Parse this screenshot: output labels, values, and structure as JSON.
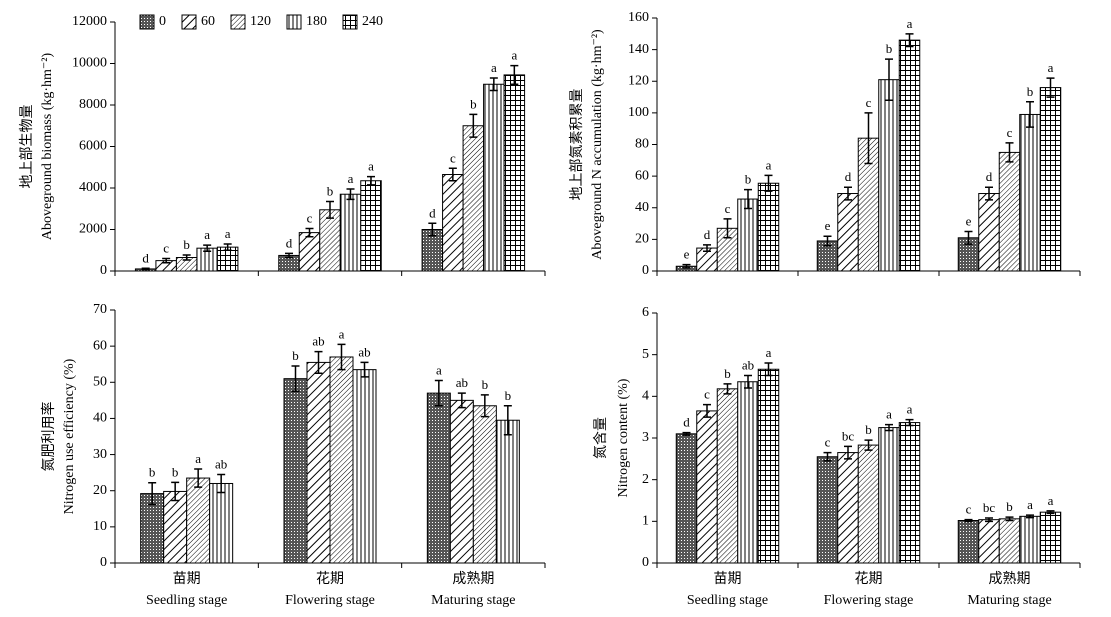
{
  "chart_data": [
    {
      "type": "bar",
      "ylabel": [
        "地上部生物量",
        "Aboveground biomass (kg·hm⁻²)"
      ],
      "ylim": [
        0,
        12000
      ],
      "yticks": [
        0,
        2000,
        4000,
        6000,
        8000,
        10000,
        12000
      ],
      "legend": "top",
      "series": [
        {
          "name": "0",
          "pattern": "dots",
          "color": "#000",
          "values": [
            100,
            750,
            2000
          ],
          "errors": [
            30,
            100,
            300
          ],
          "letters": [
            "d",
            "d",
            "d"
          ]
        },
        {
          "name": "60",
          "pattern": "diag",
          "color": "#000",
          "values": [
            500,
            1850,
            4650
          ],
          "errors": [
            100,
            200,
            300
          ],
          "letters": [
            "c",
            "c",
            "c"
          ]
        },
        {
          "name": "120",
          "pattern": "diag-dense",
          "color": "#000",
          "values": [
            650,
            2950,
            7000
          ],
          "errors": [
            120,
            400,
            550
          ],
          "letters": [
            "b",
            "b",
            "b"
          ]
        },
        {
          "name": "180",
          "pattern": "vlines",
          "color": "#000",
          "values": [
            1100,
            3700,
            9000
          ],
          "errors": [
            150,
            250,
            300
          ],
          "letters": [
            "a",
            "a",
            "a"
          ]
        },
        {
          "name": "240",
          "pattern": "grid",
          "color": "#000",
          "values": [
            1150,
            4350,
            9450
          ],
          "errors": [
            150,
            200,
            450
          ],
          "letters": [
            "a",
            "a",
            "a"
          ]
        }
      ]
    },
    {
      "type": "bar",
      "ylabel": [
        "地上部氮素积累量",
        "Aboveground N accumulation (kg·hm⁻²)"
      ],
      "ylim": [
        0,
        160
      ],
      "yticks": [
        0,
        20,
        40,
        60,
        80,
        100,
        120,
        140,
        160
      ],
      "series": [
        {
          "pattern": "dots",
          "color": "#000",
          "values": [
            3,
            19,
            21
          ],
          "errors": [
            1,
            3,
            4
          ],
          "letters": [
            "e",
            "e",
            "e"
          ]
        },
        {
          "pattern": "diag",
          "color": "#000",
          "values": [
            14.5,
            49,
            49
          ],
          "errors": [
            2,
            4,
            4
          ],
          "letters": [
            "d",
            "d",
            "d"
          ]
        },
        {
          "pattern": "diag-dense",
          "color": "#000",
          "values": [
            27,
            84,
            75
          ],
          "errors": [
            6,
            16,
            6
          ],
          "letters": [
            "c",
            "c",
            "c"
          ]
        },
        {
          "pattern": "vlines",
          "color": "#000",
          "values": [
            45.5,
            121,
            99
          ],
          "errors": [
            6,
            13,
            8
          ],
          "letters": [
            "b",
            "b",
            "b"
          ]
        },
        {
          "pattern": "grid",
          "color": "#000",
          "values": [
            55.5,
            146,
            116
          ],
          "errors": [
            5,
            4,
            6
          ],
          "letters": [
            "a",
            "a",
            "a"
          ]
        }
      ]
    },
    {
      "type": "bar",
      "ylabel": [
        "氮肥利用率",
        "Nitrogen use efficiency (%)"
      ],
      "ylim": [
        0,
        70
      ],
      "yticks": [
        0,
        10,
        20,
        30,
        40,
        50,
        60,
        70
      ],
      "categories": [
        "苗期",
        "花期",
        "成熟期"
      ],
      "categories_en": [
        "Seedling stage",
        "Flowering stage",
        "Maturing stage"
      ],
      "series": [
        {
          "pattern": "dots",
          "color": "#000",
          "values": [
            19.2,
            51,
            47
          ],
          "errors": [
            3,
            3.5,
            3.5
          ],
          "letters": [
            "b",
            "b",
            "a"
          ]
        },
        {
          "pattern": "diag",
          "color": "#000",
          "values": [
            19.8,
            55.5,
            45
          ],
          "errors": [
            2.5,
            3,
            2
          ],
          "letters": [
            "b",
            "ab",
            "ab"
          ]
        },
        {
          "pattern": "diag-dense",
          "color": "#000",
          "values": [
            23.5,
            57,
            43.5
          ],
          "errors": [
            2.5,
            3.5,
            3
          ],
          "letters": [
            "a",
            "a",
            "b"
          ]
        },
        {
          "pattern": "vlines",
          "color": "#000",
          "values": [
            22,
            53.5,
            39.5
          ],
          "errors": [
            2.5,
            2,
            4
          ],
          "letters": [
            "ab",
            "ab",
            "b"
          ]
        }
      ]
    },
    {
      "type": "bar",
      "ylabel": [
        "氮含量",
        "Nitrogen content (%)"
      ],
      "ylim": [
        0,
        6
      ],
      "yticks": [
        0,
        1,
        2,
        3,
        4,
        5,
        6
      ],
      "categories": [
        "苗期",
        "花期",
        "成熟期"
      ],
      "categories_en": [
        "Seedling stage",
        "Flowering stage",
        "Maturing stage"
      ],
      "series": [
        {
          "pattern": "dots",
          "color": "#000",
          "values": [
            3.1,
            2.55,
            1.02
          ],
          "errors": [
            0.03,
            0.1,
            0.02
          ],
          "letters": [
            "d",
            "c",
            "c"
          ]
        },
        {
          "pattern": "diag",
          "color": "#000",
          "values": [
            3.65,
            2.65,
            1.04
          ],
          "errors": [
            0.15,
            0.15,
            0.04
          ],
          "letters": [
            "c",
            "bc",
            "bc"
          ]
        },
        {
          "pattern": "diag-dense",
          "color": "#000",
          "values": [
            4.18,
            2.83,
            1.06
          ],
          "errors": [
            0.12,
            0.12,
            0.04
          ],
          "letters": [
            "b",
            "b",
            "b"
          ]
        },
        {
          "pattern": "vlines",
          "color": "#000",
          "values": [
            4.35,
            3.25,
            1.12
          ],
          "errors": [
            0.15,
            0.07,
            0.03
          ],
          "letters": [
            "ab",
            "a",
            "a"
          ]
        },
        {
          "pattern": "grid",
          "color": "#000",
          "values": [
            4.65,
            3.37,
            1.22
          ],
          "errors": [
            0.15,
            0.07,
            0.03
          ],
          "letters": [
            "a",
            "a",
            "a"
          ]
        }
      ]
    }
  ]
}
